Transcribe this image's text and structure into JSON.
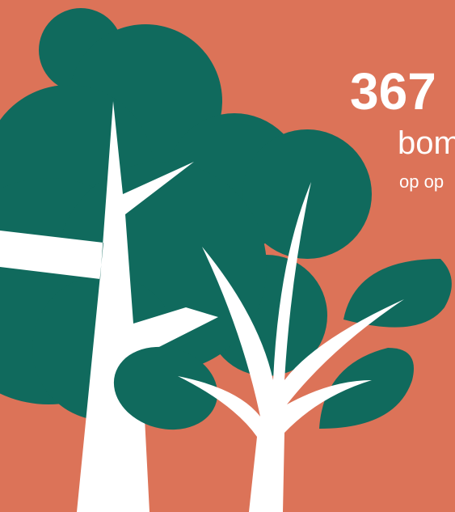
{
  "headline": {
    "number": "367",
    "word": "bom",
    "subline": "op op"
  }
}
